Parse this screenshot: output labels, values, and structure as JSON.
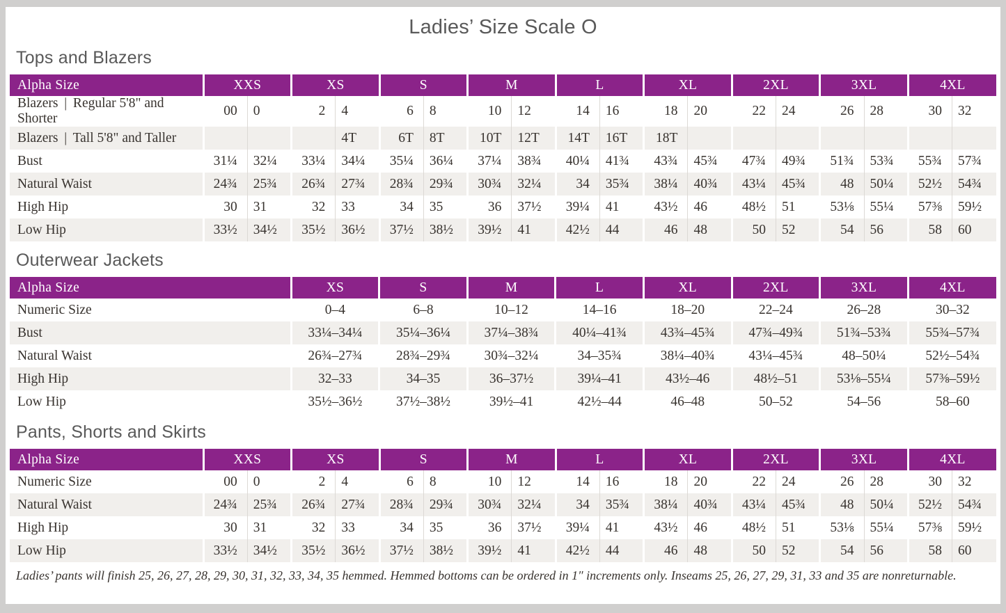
{
  "page": {
    "title": "Ladies’ Size Scale O",
    "footnote": "Ladies’ pants will finish 25, 26, 27, 28, 29, 30, 31, 32, 33, 34, 35 hemmed. Hemmed bottoms can be ordered in 1″ increments only. Inseams 25, 26, 27, 29, 31, 33 and 35 are nonreturnable."
  },
  "colors": {
    "header_purple": "#8b2389",
    "stripe_gray": "#f1efec",
    "separator_gray": "#dcd9d5",
    "text_ink": "#38332f",
    "heading_gray": "#595959",
    "page_edge_gray": "#d0cfce"
  },
  "tables": [
    {
      "section": "Tops and Blazers",
      "header_label": "Alpha Size",
      "split": true,
      "sizes": [
        "XXS",
        "XS",
        "S",
        "M",
        "L",
        "XL",
        "2XL",
        "3XL",
        "4XL"
      ],
      "rows": [
        {
          "label": "Blazers  |  Regular 5'8\" and Shorter",
          "values": [
            [
              "00",
              "0"
            ],
            [
              "2",
              "4"
            ],
            [
              "6",
              "8"
            ],
            [
              "10",
              "12"
            ],
            [
              "14",
              "16"
            ],
            [
              "18",
              "20"
            ],
            [
              "22",
              "24"
            ],
            [
              "26",
              "28"
            ],
            [
              "30",
              "32"
            ]
          ]
        },
        {
          "label": "Blazers  |  Tall 5'8\" and Taller",
          "values": [
            [
              "",
              ""
            ],
            [
              "",
              "4T"
            ],
            [
              "6T",
              "8T"
            ],
            [
              "10T",
              "12T"
            ],
            [
              "14T",
              "16T"
            ],
            [
              "18T",
              ""
            ],
            [
              "",
              ""
            ],
            [
              "",
              ""
            ],
            [
              "",
              ""
            ]
          ]
        },
        {
          "label": "Bust",
          "values": [
            [
              "31¼",
              "32¼"
            ],
            [
              "33¼",
              "34¼"
            ],
            [
              "35¼",
              "36¼"
            ],
            [
              "37¼",
              "38¾"
            ],
            [
              "40¼",
              "41¾"
            ],
            [
              "43¾",
              "45¾"
            ],
            [
              "47¾",
              "49¾"
            ],
            [
              "51¾",
              "53¾"
            ],
            [
              "55¾",
              "57¾"
            ]
          ]
        },
        {
          "label": "Natural Waist",
          "values": [
            [
              "24¾",
              "25¾"
            ],
            [
              "26¾",
              "27¾"
            ],
            [
              "28¾",
              "29¾"
            ],
            [
              "30¾",
              "32¼"
            ],
            [
              "34",
              "35¾"
            ],
            [
              "38¼",
              "40¾"
            ],
            [
              "43¼",
              "45¾"
            ],
            [
              "48",
              "50¼"
            ],
            [
              "52½",
              "54¾"
            ]
          ]
        },
        {
          "label": "High Hip",
          "values": [
            [
              "30",
              "31"
            ],
            [
              "32",
              "33"
            ],
            [
              "34",
              "35"
            ],
            [
              "36",
              "37½"
            ],
            [
              "39¼",
              "41"
            ],
            [
              "43½",
              "46"
            ],
            [
              "48½",
              "51"
            ],
            [
              "53⅛",
              "55¼"
            ],
            [
              "57⅜",
              "59½"
            ]
          ]
        },
        {
          "label": "Low Hip",
          "values": [
            [
              "33½",
              "34½"
            ],
            [
              "35½",
              "36½"
            ],
            [
              "37½",
              "38½"
            ],
            [
              "39½",
              "41"
            ],
            [
              "42½",
              "44"
            ],
            [
              "46",
              "48"
            ],
            [
              "50",
              "52"
            ],
            [
              "54",
              "56"
            ],
            [
              "58",
              "60"
            ]
          ]
        }
      ]
    },
    {
      "section": "Outerwear Jackets",
      "header_label": "Alpha Size",
      "split": false,
      "sizes": [
        "XS",
        "S",
        "M",
        "L",
        "XL",
        "2XL",
        "3XL",
        "4XL"
      ],
      "rows": [
        {
          "label": "Numeric Size",
          "values": [
            "0–4",
            "6–8",
            "10–12",
            "14–16",
            "18–20",
            "22–24",
            "26–28",
            "30–32"
          ]
        },
        {
          "label": "Bust",
          "values": [
            "33¼–34¼",
            "35¼–36¼",
            "37¼–38¾",
            "40¼–41¾",
            "43¾–45¾",
            "47¾–49¾",
            "51¾–53¾",
            "55¾–57¾"
          ]
        },
        {
          "label": "Natural Waist",
          "values": [
            "26¾–27¾",
            "28¾–29¾",
            "30¾–32¼",
            "34–35¾",
            "38¼–40¾",
            "43¼–45¾",
            "48–50¼",
            "52½–54¾"
          ]
        },
        {
          "label": "High Hip",
          "values": [
            "32–33",
            "34–35",
            "36–37½",
            "39¼–41",
            "43½–46",
            "48½–51",
            "53⅛–55¼",
            "57⅜–59½"
          ]
        },
        {
          "label": "Low Hip",
          "values": [
            "35½–36½",
            "37½–38½",
            "39½–41",
            "42½–44",
            "46–48",
            "50–52",
            "54–56",
            "58–60"
          ]
        }
      ]
    },
    {
      "section": "Pants, Shorts and Skirts",
      "header_label": "Alpha Size",
      "split": true,
      "sizes": [
        "XXS",
        "XS",
        "S",
        "M",
        "L",
        "XL",
        "2XL",
        "3XL",
        "4XL"
      ],
      "rows": [
        {
          "label": "Numeric Size",
          "values": [
            [
              "00",
              "0"
            ],
            [
              "2",
              "4"
            ],
            [
              "6",
              "8"
            ],
            [
              "10",
              "12"
            ],
            [
              "14",
              "16"
            ],
            [
              "18",
              "20"
            ],
            [
              "22",
              "24"
            ],
            [
              "26",
              "28"
            ],
            [
              "30",
              "32"
            ]
          ]
        },
        {
          "label": "Natural Waist",
          "values": [
            [
              "24¾",
              "25¾"
            ],
            [
              "26¾",
              "27¾"
            ],
            [
              "28¾",
              "29¾"
            ],
            [
              "30¾",
              "32¼"
            ],
            [
              "34",
              "35¾"
            ],
            [
              "38¼",
              "40¾"
            ],
            [
              "43¼",
              "45¾"
            ],
            [
              "48",
              "50¼"
            ],
            [
              "52½",
              "54¾"
            ]
          ]
        },
        {
          "label": "High Hip",
          "values": [
            [
              "30",
              "31"
            ],
            [
              "32",
              "33"
            ],
            [
              "34",
              "35"
            ],
            [
              "36",
              "37½"
            ],
            [
              "39¼",
              "41"
            ],
            [
              "43½",
              "46"
            ],
            [
              "48½",
              "51"
            ],
            [
              "53⅛",
              "55¼"
            ],
            [
              "57⅜",
              "59½"
            ]
          ]
        },
        {
          "label": "Low Hip",
          "values": [
            [
              "33½",
              "34½"
            ],
            [
              "35½",
              "36½"
            ],
            [
              "37½",
              "38½"
            ],
            [
              "39½",
              "41"
            ],
            [
              "42½",
              "44"
            ],
            [
              "46",
              "48"
            ],
            [
              "50",
              "52"
            ],
            [
              "54",
              "56"
            ],
            [
              "58",
              "60"
            ]
          ]
        }
      ]
    }
  ]
}
